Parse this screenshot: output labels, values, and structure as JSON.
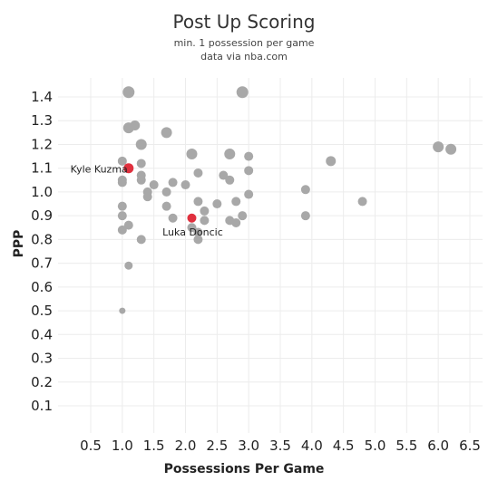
{
  "chart_data": {
    "type": "scatter",
    "title": "Post Up Scoring",
    "subtitle_lines": [
      "min. 1 possession per game",
      "data via nba.com"
    ],
    "xlabel": "Possessions Per Game",
    "ylabel": "PPP",
    "xlim": [
      0.1,
      6.7
    ],
    "ylim": [
      0.0,
      1.47
    ],
    "x_ticks": [
      0.5,
      1.0,
      1.5,
      2.0,
      2.5,
      3.0,
      3.5,
      4.0,
      4.5,
      5.0,
      5.5,
      6.0,
      6.5
    ],
    "x_tick_labels": [
      "0.5",
      "1.0",
      "1.5",
      "2.0",
      "2.5",
      "3.0",
      "3.5",
      "4.0",
      "4.5",
      "5.0",
      "5.5",
      "6.0",
      "6.5"
    ],
    "y_ticks": [
      0.1,
      0.2,
      0.3,
      0.4,
      0.5,
      0.6,
      0.7,
      0.8,
      0.9,
      1.0,
      1.1,
      1.2,
      1.3,
      1.4
    ],
    "y_tick_labels": [
      "0.1",
      "0.2",
      "0.3",
      "0.4",
      "0.5",
      "0.6",
      "0.7",
      "0.8",
      "0.9",
      "1.0",
      "1.1",
      "1.2",
      "1.3",
      "1.4"
    ],
    "grid": true,
    "colors": {
      "default": "#a8a8a8",
      "highlight": "#e0303e"
    },
    "points": [
      {
        "x": 1.1,
        "y": 1.42,
        "size": 6.5
      },
      {
        "x": 2.9,
        "y": 1.42,
        "size": 6.5
      },
      {
        "x": 1.1,
        "y": 1.27,
        "size": 6
      },
      {
        "x": 1.2,
        "y": 1.28,
        "size": 5.5
      },
      {
        "x": 1.7,
        "y": 1.25,
        "size": 6
      },
      {
        "x": 1.3,
        "y": 1.2,
        "size": 6
      },
      {
        "x": 2.1,
        "y": 1.16,
        "size": 6
      },
      {
        "x": 2.7,
        "y": 1.16,
        "size": 6
      },
      {
        "x": 3.0,
        "y": 1.15,
        "size": 5
      },
      {
        "x": 1.0,
        "y": 1.13,
        "size": 5
      },
      {
        "x": 1.3,
        "y": 1.12,
        "size": 5
      },
      {
        "x": 4.3,
        "y": 1.13,
        "size": 5.5
      },
      {
        "x": 6.0,
        "y": 1.19,
        "size": 6
      },
      {
        "x": 6.2,
        "y": 1.18,
        "size": 6
      },
      {
        "x": 1.1,
        "y": 1.1,
        "size": 5.5,
        "highlight": true
      },
      {
        "x": 2.2,
        "y": 1.08,
        "size": 5
      },
      {
        "x": 3.0,
        "y": 1.09,
        "size": 5
      },
      {
        "x": 1.3,
        "y": 1.07,
        "size": 5
      },
      {
        "x": 2.6,
        "y": 1.07,
        "size": 5
      },
      {
        "x": 1.0,
        "y": 1.05,
        "size": 5
      },
      {
        "x": 1.0,
        "y": 1.04,
        "size": 5
      },
      {
        "x": 1.3,
        "y": 1.05,
        "size": 5
      },
      {
        "x": 2.7,
        "y": 1.05,
        "size": 5
      },
      {
        "x": 1.5,
        "y": 1.03,
        "size": 5
      },
      {
        "x": 1.8,
        "y": 1.04,
        "size": 5
      },
      {
        "x": 2.0,
        "y": 1.03,
        "size": 5
      },
      {
        "x": 1.4,
        "y": 1.0,
        "size": 5
      },
      {
        "x": 1.4,
        "y": 0.98,
        "size": 5
      },
      {
        "x": 1.7,
        "y": 1.0,
        "size": 5
      },
      {
        "x": 3.0,
        "y": 0.99,
        "size": 5
      },
      {
        "x": 3.9,
        "y": 1.01,
        "size": 5
      },
      {
        "x": 2.2,
        "y": 0.96,
        "size": 5
      },
      {
        "x": 2.5,
        "y": 0.95,
        "size": 5
      },
      {
        "x": 2.8,
        "y": 0.96,
        "size": 5
      },
      {
        "x": 4.8,
        "y": 0.96,
        "size": 5
      },
      {
        "x": 1.0,
        "y": 0.94,
        "size": 5
      },
      {
        "x": 1.7,
        "y": 0.94,
        "size": 5
      },
      {
        "x": 2.3,
        "y": 0.92,
        "size": 5
      },
      {
        "x": 1.0,
        "y": 0.9,
        "size": 5
      },
      {
        "x": 1.8,
        "y": 0.89,
        "size": 5
      },
      {
        "x": 2.1,
        "y": 0.89,
        "size": 5,
        "highlight": true
      },
      {
        "x": 2.3,
        "y": 0.88,
        "size": 5
      },
      {
        "x": 2.7,
        "y": 0.88,
        "size": 5
      },
      {
        "x": 2.8,
        "y": 0.87,
        "size": 5
      },
      {
        "x": 2.9,
        "y": 0.9,
        "size": 5
      },
      {
        "x": 3.9,
        "y": 0.9,
        "size": 5
      },
      {
        "x": 1.1,
        "y": 0.86,
        "size": 5
      },
      {
        "x": 1.0,
        "y": 0.84,
        "size": 5
      },
      {
        "x": 2.1,
        "y": 0.85,
        "size": 5
      },
      {
        "x": 2.2,
        "y": 0.83,
        "size": 5
      },
      {
        "x": 1.3,
        "y": 0.8,
        "size": 5
      },
      {
        "x": 2.2,
        "y": 0.8,
        "size": 5
      },
      {
        "x": 1.1,
        "y": 0.69,
        "size": 4.5
      },
      {
        "x": 1.0,
        "y": 0.5,
        "size": 3.5
      }
    ],
    "annotations": [
      {
        "text": "Kyle Kuzma",
        "x": 1.1,
        "y": 1.1,
        "anchor": "left-of"
      },
      {
        "text": "Luka Doncic",
        "x": 2.1,
        "y": 0.89,
        "anchor": "below"
      }
    ]
  }
}
